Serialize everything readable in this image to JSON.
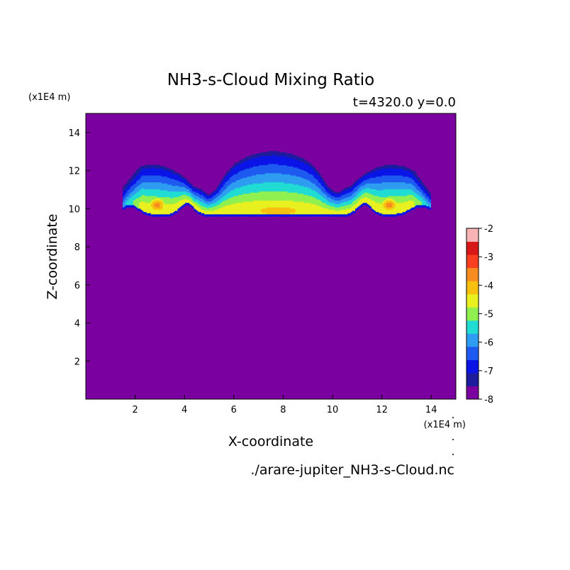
{
  "chart_data": {
    "type": "heatmap",
    "title": "NH3-s-Cloud Mixing Ratio",
    "subtitle": "t=4320.0 y=0.0",
    "xlabel": "X-coordinate",
    "ylabel": "Z-coordinate",
    "x_unit": "(x1E4 m)",
    "y_unit": "(x1E4 m)",
    "xlim": [
      0,
      15
    ],
    "ylim": [
      0,
      15
    ],
    "x_ticks": [
      "2",
      "4",
      "6",
      "8",
      "10",
      "12",
      "14"
    ],
    "y_ticks": [
      "2",
      "4",
      "6",
      "8",
      "10",
      "12",
      "14"
    ],
    "colorbar": {
      "levels": [
        -8,
        -7.5,
        -7,
        -6.5,
        -6,
        -5.5,
        -5,
        -4.5,
        -4,
        -3.5,
        -3,
        -2.5,
        -2
      ],
      "labels": [
        "-2",
        "-3",
        "-4",
        "-5",
        "-6",
        "-7",
        "-8"
      ],
      "colors": [
        "#7a00a0",
        "#1c1c9c",
        "#0a14e6",
        "#1e5af0",
        "#2e9cf0",
        "#20dcd2",
        "#90f050",
        "#e8f020",
        "#f8c010",
        "#f88c20",
        "#f84020",
        "#d81818",
        "#f8b4b4"
      ]
    },
    "background_value": -8,
    "structure": {
      "cloud_base_z": 9.6,
      "cloud_top_z": 13.0,
      "cloud_x_range": [
        1.5,
        14.0
      ],
      "core_maxima": [
        {
          "x": 2.9,
          "z": 10.2,
          "value": -3.3
        },
        {
          "x": 12.3,
          "z": 10.2,
          "value": -3.3
        },
        {
          "x": 7.8,
          "z": 9.9,
          "value": -3.6
        }
      ]
    },
    "source_file": "./arare-jupiter_NH3-s-Cloud.nc"
  }
}
